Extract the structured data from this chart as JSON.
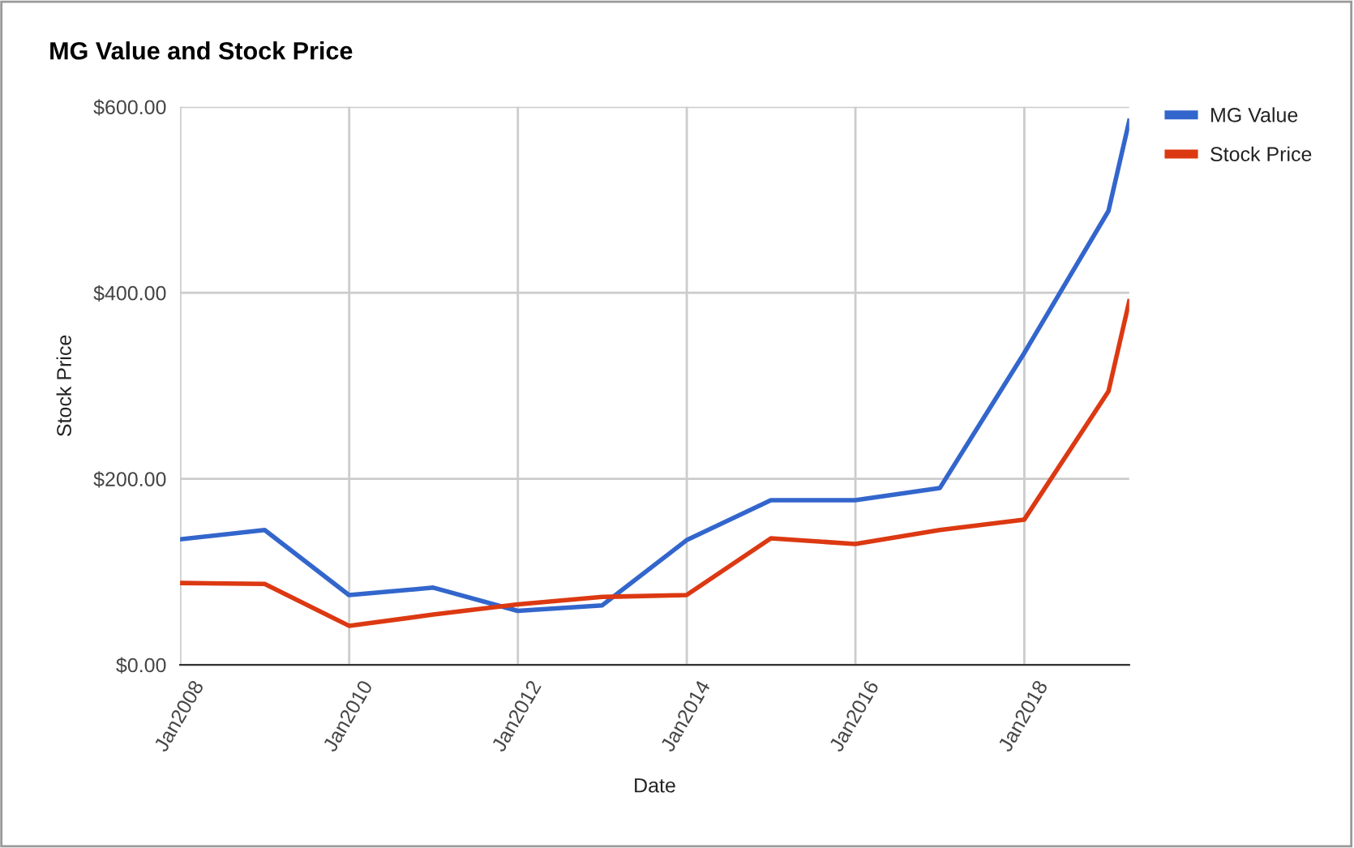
{
  "chart_data": {
    "type": "line",
    "title": "MG Value and Stock Price",
    "xlabel": "Date",
    "ylabel": "Stock Price",
    "x": [
      "2007-12-31",
      "2008-12-31",
      "2009-12-31",
      "2010-12-31",
      "2011-12-31",
      "2012-12-31",
      "2013-12-31",
      "2014-12-31",
      "2015-12-31",
      "2016-12-31",
      "2017-12-31",
      "2018-12-31",
      "2019-03-31"
    ],
    "series": [
      {
        "name": "MG Value",
        "color": "#3366cc",
        "values": [
          135,
          145,
          75,
          83,
          58,
          64,
          134,
          177,
          177,
          190,
          335,
          488,
          585
        ]
      },
      {
        "name": "Stock Price",
        "color": "#dc3912",
        "values": [
          88,
          87,
          42,
          54,
          65,
          73,
          75,
          136,
          130,
          145,
          156,
          294,
          391
        ]
      }
    ],
    "xlim": [
      "2007-12-31",
      "2019-03-31"
    ],
    "xticks": [
      {
        "value": "2008-01-01",
        "label": "Jan2008"
      },
      {
        "value": "2010-01-01",
        "label": "Jan2010"
      },
      {
        "value": "2012-01-01",
        "label": "Jan2012"
      },
      {
        "value": "2014-01-01",
        "label": "Jan2014"
      },
      {
        "value": "2016-01-01",
        "label": "Jan2016"
      },
      {
        "value": "2018-01-01",
        "label": "Jan2018"
      }
    ],
    "ylim": [
      0,
      600
    ],
    "yticks": [
      {
        "value": 0,
        "label": "$0.00"
      },
      {
        "value": 200,
        "label": "$200.00"
      },
      {
        "value": 400,
        "label": "$400.00"
      },
      {
        "value": 600,
        "label": "$600.00"
      }
    ],
    "grid": true,
    "legend": "top right",
    "marker": "none",
    "line_style": "solid"
  }
}
